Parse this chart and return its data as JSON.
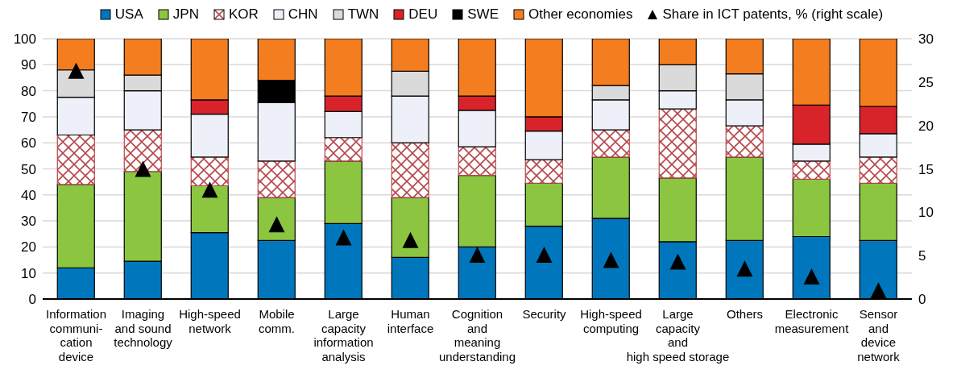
{
  "chart_data": {
    "type": "bar",
    "stacked": true,
    "categories": [
      "Information\ncommuni-\ncation\ndevice",
      "Imaging\nand sound\ntechnology",
      "High-speed\nnetwork",
      "Mobile\ncomm.",
      "Large\ncapacity\ninformation\nanalysis",
      "Human\ninterface",
      "Cognition\nand\nmeaning\nunderstanding",
      "Security",
      "High-speed\ncomputing",
      "Large\ncapacity\nand\nhigh speed storage",
      "Others",
      "Electronic\nmeasurement",
      "Sensor\nand\ndevice\nnetwork"
    ],
    "series": [
      {
        "name": "USA",
        "color": "#0077bd",
        "values": [
          12,
          14.5,
          25.5,
          22.5,
          29,
          16,
          20,
          28,
          31,
          22,
          22.5,
          24,
          22.5
        ]
      },
      {
        "name": "JPN",
        "color": "#8cc641",
        "values": [
          32,
          34.5,
          18,
          16.5,
          24,
          23,
          27.5,
          16.5,
          23.5,
          24.5,
          32,
          22,
          22
        ]
      },
      {
        "name": "KOR",
        "color": "#b5474b",
        "values": [
          19,
          16,
          11,
          14,
          9,
          21,
          11,
          9,
          10.5,
          26.5,
          12,
          7,
          10
        ]
      },
      {
        "name": "CHN",
        "color": "#edf0f8",
        "values": [
          14.5,
          15,
          16.5,
          22.5,
          10,
          18,
          14,
          11,
          11.5,
          7,
          10,
          6.5,
          9
        ]
      },
      {
        "name": "TWN",
        "color": "#dadada",
        "values": [
          10.5,
          6,
          0,
          0,
          0,
          9.5,
          0,
          0,
          5.5,
          10,
          10,
          0,
          0
        ]
      },
      {
        "name": "DEU",
        "color": "#d9232a",
        "values": [
          0,
          0,
          5.5,
          0,
          6,
          0,
          5.5,
          5.5,
          0,
          0,
          0,
          15,
          10.5
        ]
      },
      {
        "name": "SWE",
        "color": "#000000",
        "values": [
          0,
          0,
          0,
          8.5,
          0,
          0,
          0,
          0,
          0,
          0,
          0,
          0,
          0
        ]
      },
      {
        "name": "Other economies",
        "color": "#f47d20",
        "values": [
          12,
          14,
          23.5,
          16,
          22,
          12.5,
          22,
          30,
          18,
          10,
          13.5,
          25.5,
          26
        ]
      },
      {
        "name": "Share in ICT patents, % (right scale)",
        "type": "scatter",
        "axis": "y2",
        "marker": "triangle",
        "color": "#000000",
        "values": [
          26,
          14.7,
          12.3,
          8.3,
          6.8,
          6.5,
          4.8,
          4.8,
          4.2,
          4,
          3.2,
          2.3,
          0.7
        ]
      }
    ],
    "ylim": [
      0,
      100
    ],
    "yticks": [
      0,
      10,
      20,
      30,
      40,
      50,
      60,
      70,
      80,
      90,
      100
    ],
    "y2lim": [
      0,
      30
    ],
    "y2ticks": [
      0,
      5,
      10,
      15,
      20,
      25,
      30
    ],
    "grid": "y",
    "legend": "top"
  }
}
